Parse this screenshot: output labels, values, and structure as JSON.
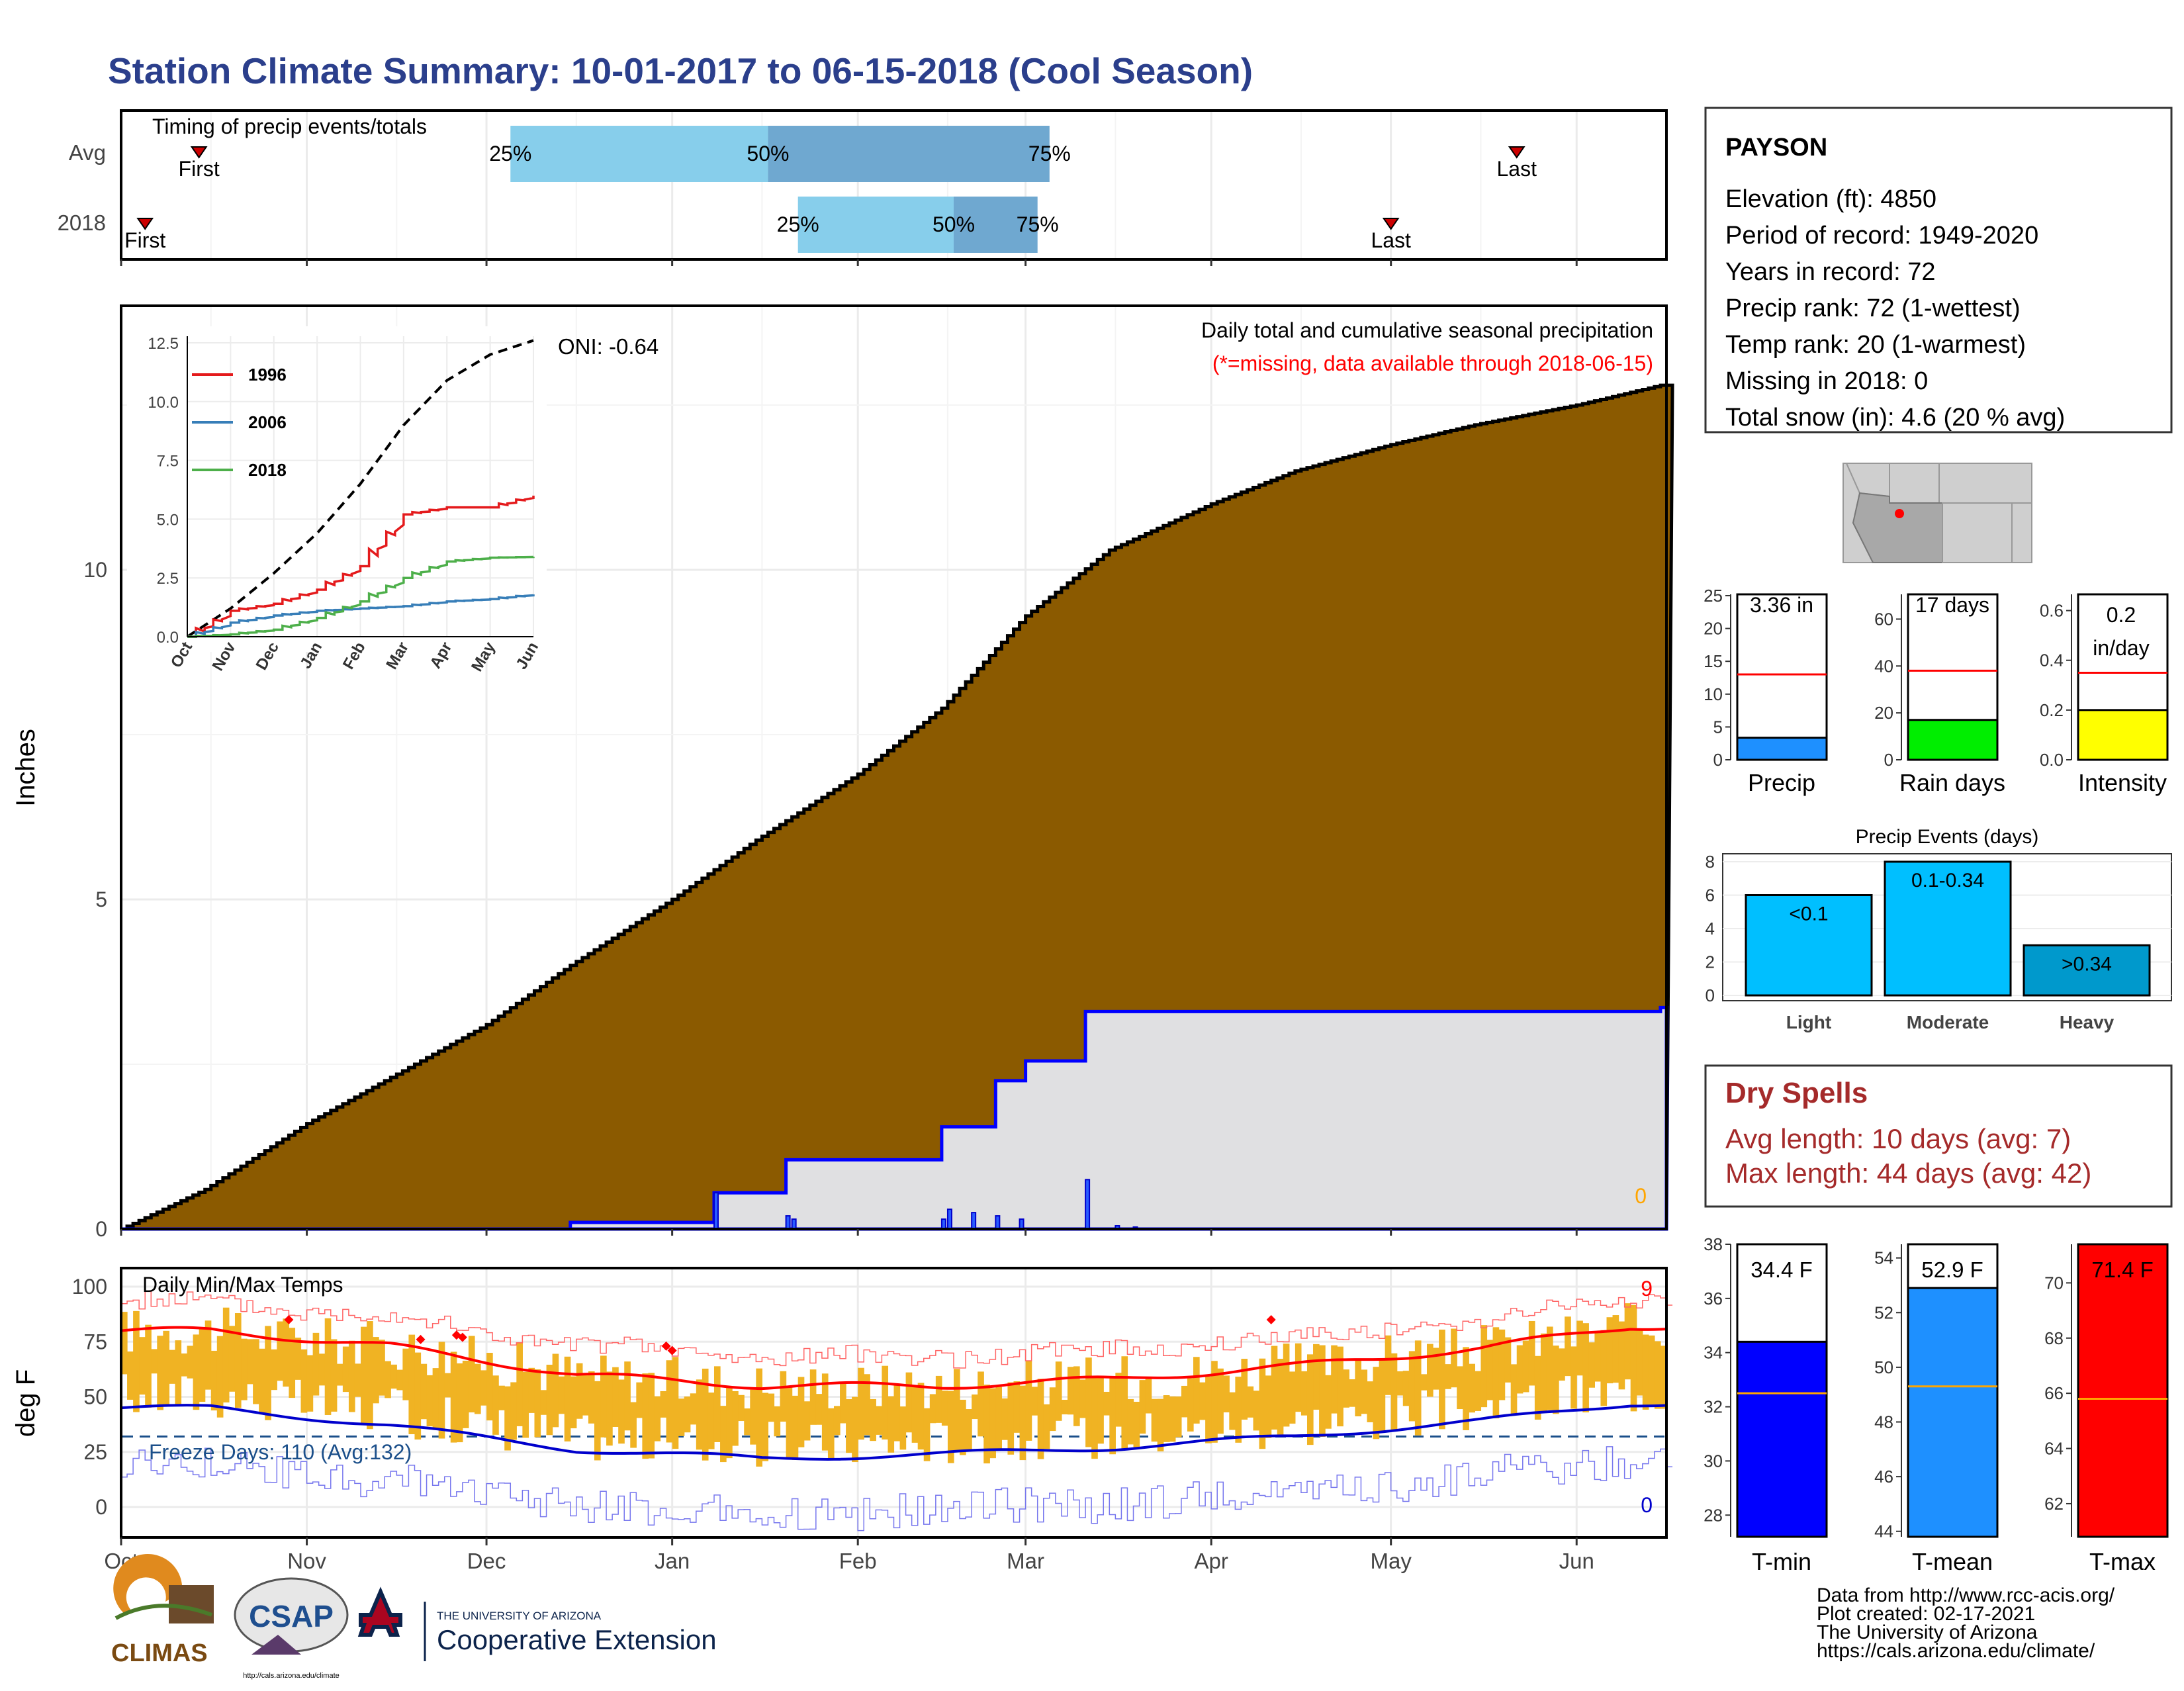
{
  "title": "Station Climate Summary: 10-01-2017 to 06-15-2018 (Cool Season)",
  "colors": {
    "title": "#2b3f8c",
    "cum_avg_fill": "#8b5a00",
    "cum_2018_fill": "#e0e0e2",
    "cum_2018_line": "#0000ff",
    "pct_light": "#87ceeb",
    "pct_dark": "#6fa8d0",
    "tmax": "#ff0000",
    "tmin": "#0000cc",
    "temp_bars": "#f0b323",
    "dry_spells": "#a52a2a"
  },
  "months": [
    "Oct",
    "Nov",
    "Dec",
    "Jan",
    "Feb",
    "Mar",
    "Apr",
    "May",
    "Jun"
  ],
  "timing": {
    "label": "Timing of precip events/totals",
    "rows": [
      {
        "name": "Avg",
        "first_label": "First",
        "last_label": "Last",
        "first_day": 13,
        "last_day": 233,
        "p25_day": 65,
        "p50_day": 108,
        "p75_day": 155,
        "p25_label": "25%",
        "p50_label": "50%",
        "p75_label": "75%"
      },
      {
        "name": "2018",
        "first_label": "First",
        "last_label": "Last",
        "first_day": 4,
        "last_day": 212,
        "p25_day": 113,
        "p50_day": 139,
        "p75_day": 153,
        "p25_label": "25%",
        "p50_label": "50%",
        "p75_label": "75%"
      }
    ]
  },
  "main": {
    "ylabel": "Inches",
    "yticks": [
      "0",
      "5",
      "10"
    ],
    "oni_label": "ONI: -0.64",
    "title": "Daily total and cumulative seasonal precipitation",
    "missing_note": "(*=missing, data available through 2018-06-15)",
    "missing_count": "0"
  },
  "inset": {
    "yticks": [
      "0.0",
      "2.5",
      "5.0",
      "7.5",
      "10.0",
      "12.5"
    ],
    "xticks": [
      "Oct",
      "Nov",
      "Dec",
      "Jan",
      "Feb",
      "Mar",
      "Apr",
      "May",
      "Jun"
    ],
    "legend": [
      "1996",
      "2006",
      "2018"
    ]
  },
  "temps": {
    "ylabel": "deg F",
    "yticks": [
      "0",
      "25",
      "50",
      "75",
      "100"
    ],
    "title": "Daily Min/Max Temps",
    "freeze_label": "Freeze Days: 110 (Avg:132)",
    "tmax_count": "9",
    "tmin_count": "0"
  },
  "station": {
    "name": "PAYSON",
    "lines": [
      "Elevation (ft): 4850",
      "Period of record: 1949-2020",
      "Years in record: 72",
      "Precip rank: 72 (1-wettest)",
      "Temp rank: 20 (1-warmest)",
      "Missing in 2018: 0",
      "Total snow (in): 4.6 (20 % avg)"
    ]
  },
  "mini": {
    "precip": {
      "label": "Precip",
      "value_text": "3.36 in",
      "yticks": [
        "0",
        "5",
        "10",
        "15",
        "20",
        "25"
      ]
    },
    "raindays": {
      "label": "Rain days",
      "value_text": "17 days",
      "yticks": [
        "0",
        "20",
        "40",
        "60"
      ]
    },
    "intensity": {
      "label": "Intensity",
      "value_text": "0.2",
      "unit_text": "in/day",
      "yticks": [
        "0.0",
        "0.2",
        "0.4",
        "0.6"
      ]
    }
  },
  "events": {
    "title": "Precip Events (days)",
    "yticks": [
      "0",
      "2",
      "4",
      "6",
      "8"
    ],
    "categories": [
      "Light",
      "Moderate",
      "Heavy"
    ],
    "bar_labels": [
      "<0.1",
      "0.1-0.34",
      ">0.34"
    ]
  },
  "dry_spells": {
    "title": "Dry Spells",
    "avg": "Avg length: 10 days (avg: 7)",
    "max": "Max length: 44 days (avg: 42)"
  },
  "tbars": {
    "tmin": {
      "label": "T-min",
      "value_text": "34.4 F",
      "yticks": [
        "28",
        "30",
        "32",
        "34",
        "36",
        "38"
      ]
    },
    "tmean": {
      "label": "T-mean",
      "value_text": "52.9 F",
      "yticks": [
        "44",
        "46",
        "48",
        "50",
        "52",
        "54"
      ]
    },
    "tmax": {
      "label": "T-max",
      "value_text": "71.4 F",
      "yticks": [
        "62",
        "64",
        "66",
        "68",
        "70"
      ]
    }
  },
  "footer": {
    "lines": [
      "Data from http://www.rcc-acis.org/",
      "Plot created: 02-17-2021",
      "The University of Arizona",
      "https://cals.arizona.edu/climate/"
    ],
    "ua_line1": "THE UNIVERSITY OF ARIZONA",
    "ua_line2": "Cooperative Extension",
    "climas": "CLIMAS",
    "csap": "CSAP",
    "csap_url": "http://cals.arizona.edu/climate"
  },
  "chart_data": [
    {
      "type": "area",
      "title": "Daily total and cumulative seasonal precipitation",
      "ylabel": "Inches",
      "ylim": [
        0,
        12.6
      ],
      "x_unit": "date",
      "series": [
        {
          "values_x": [
            "10-01",
            "10-15",
            "11-01",
            "11-15",
            "12-01",
            "12-15",
            "01-01",
            "01-15",
            "02-01",
            "02-15",
            "03-01",
            "03-15",
            "04-01",
            "04-15",
            "05-01",
            "05-15",
            "06-01",
            "06-15"
          ],
          "values": [
            0,
            0.6,
            1.6,
            2.3,
            3.1,
            4.0,
            5.0,
            5.9,
            6.9,
            7.9,
            9.3,
            10.3,
            11.0,
            11.5,
            11.9,
            12.2,
            12.5,
            12.8
          ]
        },
        {
          "values_x": [
            "10-01",
            "12-15",
            "01-08",
            "01-20",
            "02-15",
            "02-24",
            "03-01",
            "03-11",
            "06-15"
          ],
          "values": [
            0,
            0.1,
            0.55,
            1.05,
            1.55,
            2.25,
            2.55,
            3.3,
            3.36
          ]
        }
      ]
    },
    {
      "type": "line",
      "title": "",
      "ylim": [
        0,
        12.6
      ],
      "series": [
        {
          "name": "",
          "values": [
            0,
            1.2,
            2.7,
            4.4,
            6.5,
            9.0,
            10.9,
            12.0,
            12.6
          ]
        },
        {
          "name": "1996",
          "values": [
            0,
            1.1,
            1.4,
            2.0,
            3.0,
            5.2,
            5.5,
            5.5,
            6.0
          ]
        },
        {
          "name": "2006",
          "values": [
            0,
            0.6,
            0.9,
            1.1,
            1.2,
            1.3,
            1.5,
            1.6,
            1.8
          ]
        },
        {
          "name": "2018",
          "values": [
            0,
            0.1,
            0.3,
            0.8,
            1.5,
            2.5,
            3.2,
            3.36,
            3.4
          ]
        }
      ]
    },
    {
      "type": "line",
      "title": "Daily Min/Max Temps",
      "ylabel": "deg F",
      "ylim": [
        -12,
        107
      ],
      "categories": [
        "Oct",
        "Nov",
        "Dec",
        "Jan",
        "Feb",
        "Mar",
        "Apr",
        "May",
        "Jun"
      ],
      "series": [
        {
          "name": "avg max",
          "values": [
            80,
            73,
            60,
            55,
            55,
            58,
            64,
            72,
            82
          ]
        },
        {
          "name": "avg min",
          "values": [
            45,
            37,
            26,
            22,
            24,
            27,
            32,
            39,
            47
          ]
        }
      ]
    },
    {
      "type": "bar",
      "categories": [
        "Precip",
        "Rain days",
        "Intensity"
      ],
      "values": [
        3.36,
        17,
        0.2
      ],
      "averages": [
        13,
        38,
        0.35
      ]
    },
    {
      "type": "bar",
      "title": "Precip Events (days)",
      "categories": [
        "Light",
        "Moderate",
        "Heavy"
      ],
      "values": [
        6,
        8,
        3
      ],
      "ylim": [
        0,
        8
      ]
    },
    {
      "type": "bar",
      "categories": [
        "T-min",
        "T-mean",
        "T-max"
      ],
      "values": [
        34.4,
        52.9,
        71.4
      ],
      "averages": [
        32.5,
        49.3,
        65.8
      ]
    }
  ]
}
